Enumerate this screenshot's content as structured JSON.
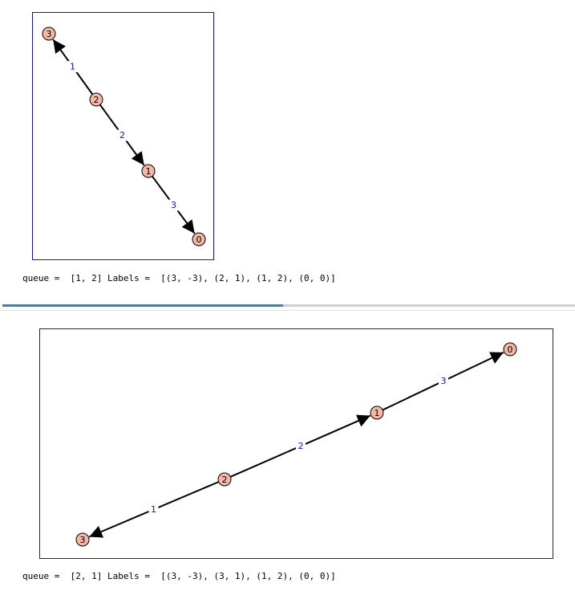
{
  "cells": [
    {
      "graph": {
        "nodes": [
          "3",
          "2",
          "1",
          "0"
        ],
        "edges": [
          {
            "from": "2",
            "to": "3",
            "label": "1"
          },
          {
            "from": "2",
            "to": "1",
            "label": "2"
          },
          {
            "from": "1",
            "to": "0",
            "label": "3"
          }
        ]
      },
      "output": {
        "queue_label": "queue = ",
        "queue_value": "[1, 2]",
        "labels_label": "Labels = ",
        "labels_value": "[(3, -3), (2, 1), (1, 2), (0, 0)]"
      }
    },
    {
      "graph": {
        "nodes": [
          "3",
          "2",
          "1",
          "0"
        ],
        "edges": [
          {
            "from": "2",
            "to": "3",
            "label": "1"
          },
          {
            "from": "2",
            "to": "1",
            "label": "2"
          },
          {
            "from": "1",
            "to": "0",
            "label": "3"
          }
        ]
      },
      "output": {
        "queue_label": "queue = ",
        "queue_value": "[2, 1]",
        "labels_label": "Labels = ",
        "labels_value": "[(3, -3), (3, 1), (1, 2), (0, 0)]"
      }
    }
  ],
  "colors": {
    "frame": "#1010e0",
    "node_fill": "#f6b8a4",
    "edge_label": "#1010e0",
    "divider_active": "#3a7fbf"
  }
}
